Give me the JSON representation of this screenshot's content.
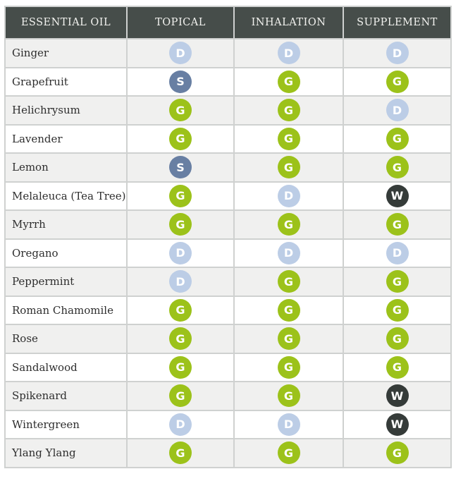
{
  "headers": [
    "ESSENTIAL OIL",
    "TOPICAL",
    "INHALATION",
    "SUPPLEMENT"
  ],
  "legend_colors": {
    "G": "#9cc21a",
    "D": "#bccde6",
    "S": "#687fa3",
    "W": "#353b39"
  },
  "rows": [
    {
      "oil": "Ginger",
      "topical": "D",
      "inhalation": "D",
      "supplement": "D"
    },
    {
      "oil": "Grapefruit",
      "topical": "S",
      "inhalation": "G",
      "supplement": "G"
    },
    {
      "oil": "Helichrysum",
      "topical": "G",
      "inhalation": "G",
      "supplement": "D"
    },
    {
      "oil": "Lavender",
      "topical": "G",
      "inhalation": "G",
      "supplement": "G"
    },
    {
      "oil": "Lemon",
      "topical": "S",
      "inhalation": "G",
      "supplement": "G"
    },
    {
      "oil": "Melaleuca (Tea Tree)",
      "topical": "G",
      "inhalation": "D",
      "supplement": "W"
    },
    {
      "oil": "Myrrh",
      "topical": "G",
      "inhalation": "G",
      "supplement": "G"
    },
    {
      "oil": "Oregano",
      "topical": "D",
      "inhalation": "D",
      "supplement": "D"
    },
    {
      "oil": "Peppermint",
      "topical": "D",
      "inhalation": "G",
      "supplement": "G"
    },
    {
      "oil": "Roman Chamomile",
      "topical": "G",
      "inhalation": "G",
      "supplement": "G"
    },
    {
      "oil": "Rose",
      "topical": "G",
      "inhalation": "G",
      "supplement": "G"
    },
    {
      "oil": "Sandalwood",
      "topical": "G",
      "inhalation": "G",
      "supplement": "G"
    },
    {
      "oil": "Spikenard",
      "topical": "G",
      "inhalation": "G",
      "supplement": "W"
    },
    {
      "oil": "Wintergreen",
      "topical": "D",
      "inhalation": "D",
      "supplement": "W"
    },
    {
      "oil": "Ylang Ylang",
      "topical": "G",
      "inhalation": "G",
      "supplement": "G"
    }
  ]
}
